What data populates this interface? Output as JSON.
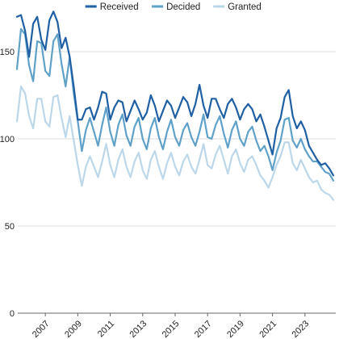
{
  "chart_data": {
    "type": "line",
    "title": "",
    "xlabel": "",
    "ylabel": "",
    "ylim": [
      0,
      175
    ],
    "xlim": [
      2005.3,
      2024.9
    ],
    "yticks": [
      "0",
      "50",
      "100",
      "150"
    ],
    "xticks": [
      "2007",
      "2009",
      "2011",
      "2013",
      "2015",
      "2017",
      "2019",
      "2021",
      "2023"
    ],
    "grid": "horizontal",
    "legend_position": "top-center",
    "series": [
      {
        "name": "Received",
        "color": "#1f5fa3",
        "x": [
          2005.25,
          2005.5,
          2005.75,
          2006.0,
          2006.25,
          2006.5,
          2006.75,
          2007.0,
          2007.25,
          2007.5,
          2007.75,
          2008.0,
          2008.25,
          2008.5,
          2008.75,
          2009.0,
          2009.25,
          2009.5,
          2009.75,
          2010.0,
          2010.25,
          2010.5,
          2010.75,
          2011.0,
          2011.25,
          2011.5,
          2011.75,
          2012.0,
          2012.25,
          2012.5,
          2012.75,
          2013.0,
          2013.25,
          2013.5,
          2013.75,
          2014.0,
          2014.25,
          2014.5,
          2014.75,
          2015.0,
          2015.25,
          2015.5,
          2015.75,
          2016.0,
          2016.25,
          2016.5,
          2016.75,
          2017.0,
          2017.25,
          2017.5,
          2017.75,
          2018.0,
          2018.25,
          2018.5,
          2018.75,
          2019.0,
          2019.25,
          2019.5,
          2019.75,
          2020.0,
          2020.25,
          2020.5,
          2020.75,
          2021.0,
          2021.25,
          2021.5,
          2021.75,
          2022.0,
          2022.25,
          2022.5,
          2022.75,
          2023.0,
          2023.25,
          2023.5,
          2023.75,
          2024.0,
          2024.25,
          2024.5,
          2024.75
        ],
        "values": [
          170,
          171,
          162,
          147,
          166,
          170,
          157,
          151,
          168,
          173,
          167,
          152,
          158,
          147,
          130,
          111,
          111,
          117,
          118,
          111,
          118,
          127,
          126,
          111,
          118,
          122,
          121,
          110,
          116,
          122,
          117,
          111,
          115,
          125,
          119,
          110,
          116,
          122,
          119,
          112,
          118,
          124,
          121,
          113,
          120,
          131,
          119,
          112,
          123,
          123,
          117,
          112,
          120,
          123,
          118,
          111,
          117,
          120,
          117,
          110,
          114,
          107,
          99,
          91,
          106,
          112,
          124,
          128,
          113,
          106,
          110,
          105,
          96,
          92,
          88,
          85,
          86,
          83,
          79
        ]
      },
      {
        "name": "Decided",
        "color": "#5fa1c9",
        "x": [
          2005.25,
          2005.5,
          2005.75,
          2006.0,
          2006.25,
          2006.5,
          2006.75,
          2007.0,
          2007.25,
          2007.5,
          2007.75,
          2008.0,
          2008.25,
          2008.5,
          2008.75,
          2009.0,
          2009.25,
          2009.5,
          2009.75,
          2010.0,
          2010.25,
          2010.5,
          2010.75,
          2011.0,
          2011.25,
          2011.5,
          2011.75,
          2012.0,
          2012.25,
          2012.5,
          2012.75,
          2013.0,
          2013.25,
          2013.5,
          2013.75,
          2014.0,
          2014.25,
          2014.5,
          2014.75,
          2015.0,
          2015.25,
          2015.5,
          2015.75,
          2016.0,
          2016.25,
          2016.5,
          2016.75,
          2017.0,
          2017.25,
          2017.5,
          2017.75,
          2018.0,
          2018.25,
          2018.5,
          2018.75,
          2019.0,
          2019.25,
          2019.5,
          2019.75,
          2020.0,
          2020.25,
          2020.5,
          2020.75,
          2021.0,
          2021.25,
          2021.5,
          2021.75,
          2022.0,
          2022.25,
          2022.5,
          2022.75,
          2023.0,
          2023.25,
          2023.5,
          2023.75,
          2024.0,
          2024.25,
          2024.5,
          2024.75
        ],
        "values": [
          140,
          163,
          160,
          142,
          133,
          156,
          155,
          139,
          136,
          156,
          160,
          143,
          130,
          147,
          126,
          110,
          93,
          105,
          112,
          104,
          96,
          108,
          118,
          104,
          96,
          108,
          114,
          102,
          96,
          107,
          112,
          100,
          94,
          106,
          112,
          101,
          94,
          104,
          111,
          101,
          96,
          105,
          109,
          101,
          96,
          104,
          114,
          101,
          100,
          108,
          113,
          103,
          95,
          105,
          110,
          100,
          96,
          104,
          107,
          99,
          93,
          96,
          90,
          82,
          92,
          99,
          111,
          112,
          99,
          95,
          100,
          94,
          90,
          87,
          87,
          84,
          81,
          80,
          76
        ]
      },
      {
        "name": "Granted",
        "color": "#bcd7ea",
        "x": [
          2005.25,
          2005.5,
          2005.75,
          2006.0,
          2006.25,
          2006.5,
          2006.75,
          2007.0,
          2007.25,
          2007.5,
          2007.75,
          2008.0,
          2008.25,
          2008.5,
          2008.75,
          2009.0,
          2009.25,
          2009.5,
          2009.75,
          2010.0,
          2010.25,
          2010.5,
          2010.75,
          2011.0,
          2011.25,
          2011.5,
          2011.75,
          2012.0,
          2012.25,
          2012.5,
          2012.75,
          2013.0,
          2013.25,
          2013.5,
          2013.75,
          2014.0,
          2014.25,
          2014.5,
          2014.75,
          2015.0,
          2015.25,
          2015.5,
          2015.75,
          2016.0,
          2016.25,
          2016.5,
          2016.75,
          2017.0,
          2017.25,
          2017.5,
          2017.75,
          2018.0,
          2018.25,
          2018.5,
          2018.75,
          2019.0,
          2019.25,
          2019.5,
          2019.75,
          2020.0,
          2020.25,
          2020.5,
          2020.75,
          2021.0,
          2021.25,
          2021.5,
          2021.75,
          2022.0,
          2022.25,
          2022.5,
          2022.75,
          2023.0,
          2023.25,
          2023.5,
          2023.75,
          2024.0,
          2024.25,
          2024.5,
          2024.75
        ],
        "values": [
          110,
          130,
          126,
          113,
          106,
          123,
          123,
          110,
          107,
          124,
          125,
          112,
          101,
          113,
          99,
          85,
          73,
          84,
          90,
          84,
          78,
          87,
          97,
          85,
          78,
          88,
          94,
          84,
          78,
          87,
          92,
          82,
          77,
          88,
          93,
          84,
          77,
          86,
          92,
          84,
          79,
          87,
          91,
          84,
          80,
          88,
          97,
          85,
          83,
          91,
          96,
          88,
          80,
          90,
          94,
          86,
          81,
          88,
          90,
          85,
          79,
          76,
          72,
          78,
          85,
          90,
          98,
          98,
          86,
          82,
          88,
          83,
          78,
          75,
          76,
          71,
          69,
          68,
          65
        ]
      }
    ]
  }
}
